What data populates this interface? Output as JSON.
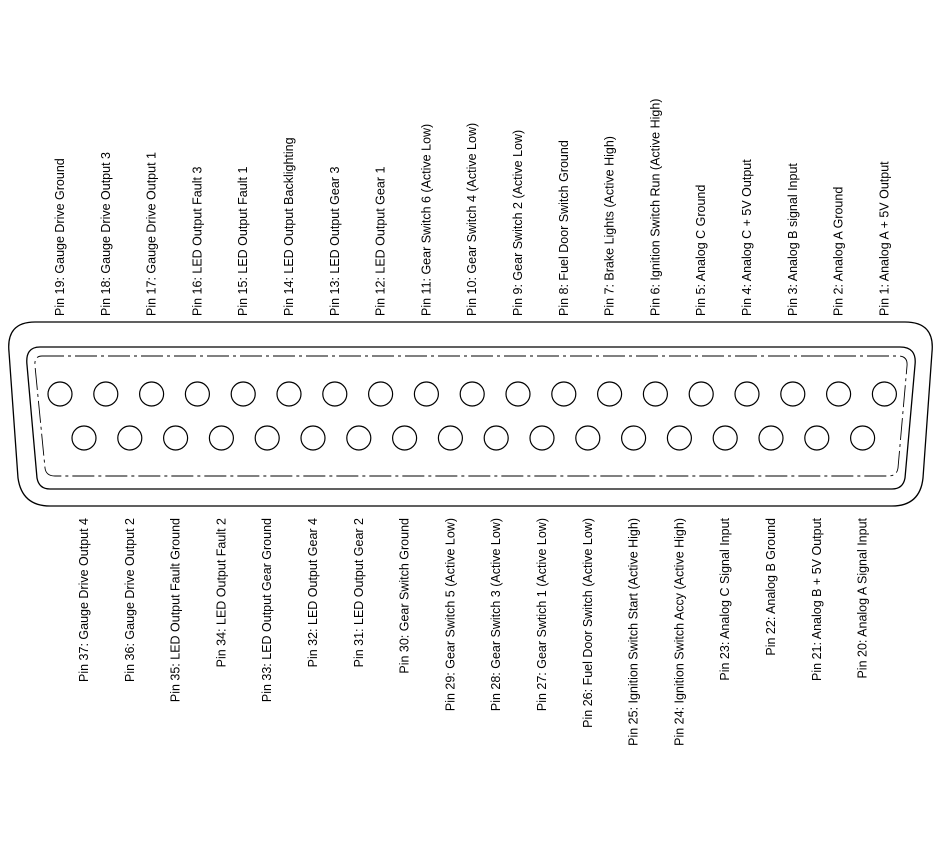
{
  "top_row": [
    {
      "num": 19,
      "label": "Pin 19: Gauge Drive Ground"
    },
    {
      "num": 18,
      "label": "Pin 18:  Gauge Drive Output 3"
    },
    {
      "num": 17,
      "label": "Pin 17:  Gauge Drive Output 1"
    },
    {
      "num": 16,
      "label": "Pin 16: LED Output  Fault 3"
    },
    {
      "num": 15,
      "label": "Pin 15: LED Output Fault 1"
    },
    {
      "num": 14,
      "label": "Pin 14: LED Output Backlighting"
    },
    {
      "num": 13,
      "label": "Pin 13: LED Output Gear 3"
    },
    {
      "num": 12,
      "label": "Pin 12: LED Output Gear 1"
    },
    {
      "num": 11,
      "label": "Pin 11: Gear Switch 6 (Active Low)"
    },
    {
      "num": 10,
      "label": "Pin 10: Gear Switch 4 (Active Low)"
    },
    {
      "num": 9,
      "label": "Pin 9: Gear Switch 2 (Active Low)"
    },
    {
      "num": 8,
      "label": "Pin 8:  Fuel Door Switch Ground"
    },
    {
      "num": 7,
      "label": "Pin 7: Brake Lights (Active High)"
    },
    {
      "num": 6,
      "label": "Pin 6: Ignition Switch Run (Active High)"
    },
    {
      "num": 5,
      "label": "Pin 5: Analog C Ground"
    },
    {
      "num": 4,
      "label": "Pin 4: Analog C + 5V Output"
    },
    {
      "num": 3,
      "label": "Pin 3: Analog B signal Input"
    },
    {
      "num": 2,
      "label": "Pin 2:  Analog A Ground"
    },
    {
      "num": 1,
      "label": "Pin 1: Analog A + 5V Output"
    }
  ],
  "bottom_row": [
    {
      "num": 37,
      "label": "Pin 37: Gauge Drive Output 4"
    },
    {
      "num": 36,
      "label": "Pin 36: Gauge Drive Output 2"
    },
    {
      "num": 35,
      "label": "Pin 35: LED Output Fault Ground"
    },
    {
      "num": 34,
      "label": "Pin 34: LED Output  Fault 2"
    },
    {
      "num": 33,
      "label": "Pin 33: LED Output Gear Ground"
    },
    {
      "num": 32,
      "label": "Pin 32: LED Output Gear 4"
    },
    {
      "num": 31,
      "label": "Pin 31: LED Output Gear 2"
    },
    {
      "num": 30,
      "label": "Pin 30: Gear Switch Ground"
    },
    {
      "num": 29,
      "label": "Pin 29: Gear Switch 5 (Active Low)"
    },
    {
      "num": 28,
      "label": "Pin 28: Gear Switch 3 (Active Low)"
    },
    {
      "num": 27,
      "label": "Pin 27: Gear Swtich 1  (Active Low)"
    },
    {
      "num": 26,
      "label": "Pin 26: Fuel Door Switch (Active Low)"
    },
    {
      "num": 25,
      "label": "Pin 25: Ignition Switch Start  (Active High)"
    },
    {
      "num": 24,
      "label": "Pin 24: Ignition Switch Accy (Active High)"
    },
    {
      "num": 23,
      "label": "Pin 23: Analog C Signal Input"
    },
    {
      "num": 22,
      "label": "Pin 22: Analog B Ground"
    },
    {
      "num": 21,
      "label": "Pin 21: Analog B + 5V Output"
    },
    {
      "num": 20,
      "label": "Pin 20: Analog A Signal Input"
    }
  ]
}
